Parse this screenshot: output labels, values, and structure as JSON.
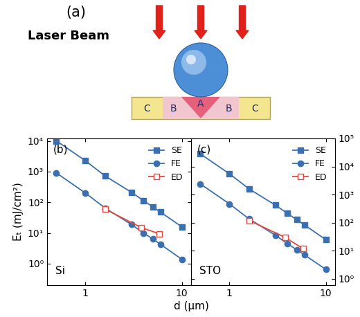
{
  "diagram": {
    "panel_label": "(a)",
    "beam_label": "Laser Beam",
    "regions": {
      "center": "A",
      "ring": "B",
      "outer": "C"
    }
  },
  "chart_data": [
    {
      "type": "line",
      "title": "(b)",
      "annotations": [
        "Si"
      ],
      "x_label": "d (μm)",
      "y_label": "Eₜ (mJ/cm²)",
      "log": true,
      "legend": "upper right",
      "xlim": [
        0.4,
        12.5
      ],
      "xticks": [
        1,
        10
      ],
      "ylim": [
        0.2,
        12000
      ],
      "yticks": [
        {
          "value": 1,
          "label": "10⁰"
        },
        {
          "value": 10,
          "label": "10¹"
        },
        {
          "value": 100,
          "label": "10²"
        },
        {
          "value": 1000,
          "label": "10³"
        },
        {
          "value": 10000,
          "label": "10⁴"
        }
      ],
      "series": [
        {
          "name": "SE",
          "color": "#3a6fb0",
          "marker": "square",
          "line_style": "solid",
          "x": [
            0.5,
            1,
            1.6,
            3,
            4,
            5,
            6,
            10
          ],
          "values": [
            10000,
            2250,
            720,
            212,
            114,
            71,
            48,
            16
          ]
        },
        {
          "name": "FE",
          "color": "#3a6fb0",
          "marker": "circle",
          "line_style": "solid",
          "x": [
            0.5,
            1,
            1.6,
            3,
            4,
            5,
            6,
            10
          ],
          "values": [
            900,
            200,
            65,
            19,
            10,
            6.4,
            4.3,
            1.4
          ]
        },
        {
          "name": "ED",
          "color": "#e8473b",
          "marker": "open square",
          "line_style": "solid",
          "x": [
            1.6,
            3.8,
            5.8
          ],
          "values": [
            60,
            15,
            9.5
          ]
        }
      ]
    },
    {
      "type": "line",
      "title": "(c)",
      "annotations": [
        "STO"
      ],
      "log": true,
      "legend": "upper right",
      "xlim": [
        0.4,
        12.5
      ],
      "xticks": [
        1,
        10
      ],
      "ylim": [
        0.6,
        100000
      ],
      "yticks": [
        {
          "value": 1,
          "label": "10⁰"
        },
        {
          "value": 10,
          "label": "10¹"
        },
        {
          "value": 100,
          "label": "10²"
        },
        {
          "value": 1000,
          "label": "10³"
        },
        {
          "value": 10000,
          "label": "10⁴"
        },
        {
          "value": 100000,
          "label": "10⁵"
        }
      ],
      "series": [
        {
          "name": "SE",
          "color": "#3a6fb0",
          "marker": "square",
          "line_style": "solid",
          "x": [
            0.5,
            1,
            1.6,
            3,
            4,
            5,
            6,
            10
          ],
          "values": [
            28000,
            5530,
            1600,
            424,
            215,
            128,
            84,
            25
          ]
        },
        {
          "name": "FE",
          "color": "#3a6fb0",
          "marker": "circle",
          "line_style": "solid",
          "x": [
            0.5,
            1,
            1.6,
            3,
            4,
            5,
            6,
            10
          ],
          "values": [
            2400,
            470,
            137,
            36,
            18,
            11,
            7.2,
            2.2
          ]
        },
        {
          "name": "ED",
          "color": "#e8473b",
          "marker": "open square",
          "line_style": "solid",
          "x": [
            1.6,
            3.8,
            5.8
          ],
          "values": [
            120,
            30,
            12
          ]
        }
      ]
    }
  ]
}
